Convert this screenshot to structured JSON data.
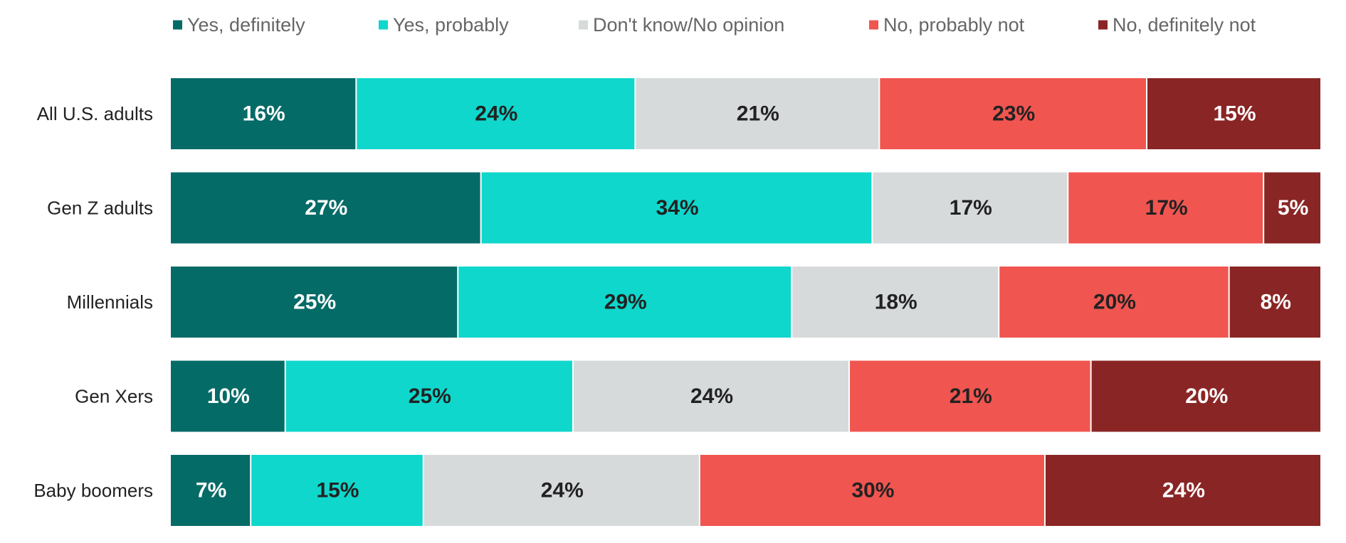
{
  "chart_data": {
    "type": "bar",
    "orientation": "horizontal",
    "stacked": true,
    "title": "",
    "xlabel": "",
    "ylabel": "",
    "xlim": [
      0,
      100
    ],
    "grid": false,
    "legend_position": "top",
    "categories": [
      "All U.S. adults",
      "Gen Z adults",
      "Millennials",
      "Gen Xers",
      "Baby boomers"
    ],
    "series": [
      {
        "name": "Yes, definitely",
        "color": "#056b67",
        "label_color": "#ffffff",
        "values": [
          16,
          27,
          25,
          10,
          7
        ]
      },
      {
        "name": "Yes, probably",
        "color": "#0fd7cc",
        "label_color": "#222222",
        "values": [
          24,
          34,
          29,
          25,
          15
        ]
      },
      {
        "name": "Don't know/No opinion",
        "color": "#d7dadb",
        "label_color": "#222222",
        "values": [
          21,
          17,
          18,
          24,
          24
        ]
      },
      {
        "name": "No, probably not",
        "color": "#f05550",
        "label_color": "#222222",
        "values": [
          23,
          17,
          20,
          21,
          30
        ]
      },
      {
        "name": "No, definitely not",
        "color": "#8a2525",
        "label_color": "#ffffff",
        "values": [
          15,
          5,
          8,
          20,
          24
        ]
      }
    ],
    "value_format": "{v}%"
  }
}
